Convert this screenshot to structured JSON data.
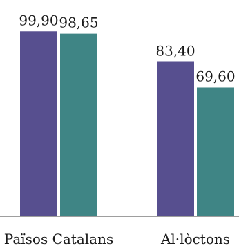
{
  "chart_data": {
    "type": "bar",
    "categories": [
      "Països Catalans",
      "Al·lòctons"
    ],
    "series": [
      {
        "values": [
          99.9,
          83.4
        ],
        "labels": [
          "99,90",
          "83,40"
        ],
        "color": "#574f8f"
      },
      {
        "values": [
          98.65,
          69.6
        ],
        "labels": [
          "98,65",
          "69,60"
        ],
        "color": "#3f8585"
      }
    ],
    "ylim": [
      0,
      100
    ],
    "grid": false,
    "legend": "none",
    "axis_color": "#7f7f7f"
  }
}
